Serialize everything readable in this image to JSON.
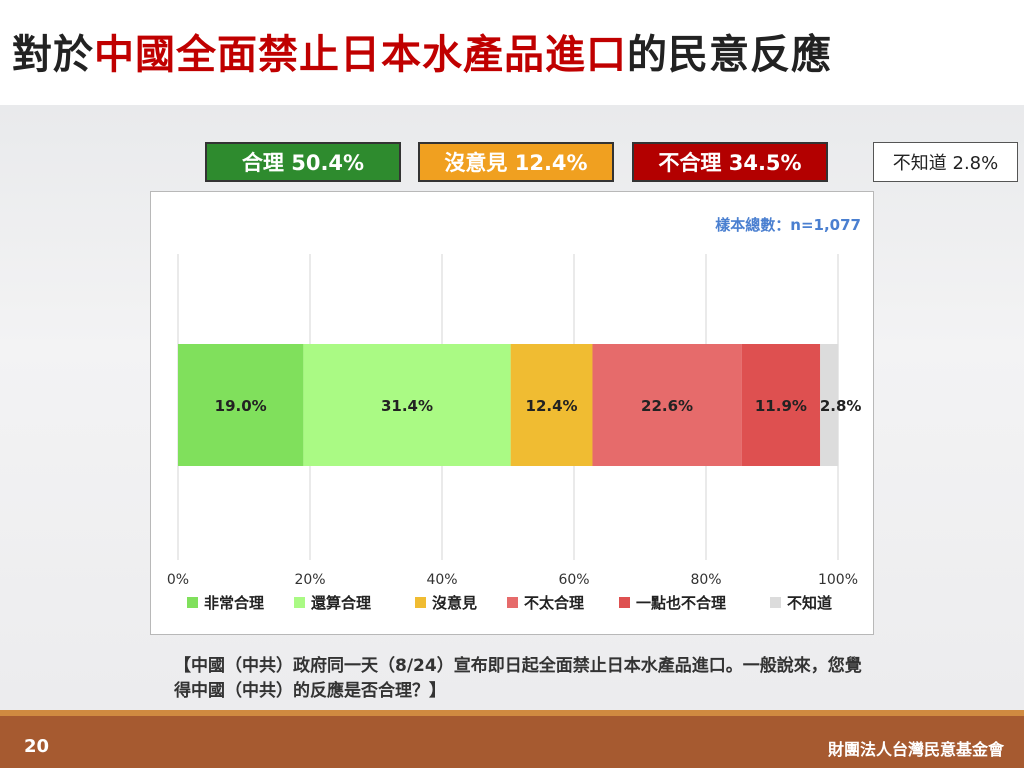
{
  "title": {
    "prefix": "對於",
    "highlight": "中國全面禁止日本水產品進口",
    "suffix": "的民意反應"
  },
  "summary": {
    "reasonable": "合理 50.4%",
    "no_opinion": "沒意見 12.4%",
    "unreasonable": "不合理 34.5%",
    "dont_know": "不知道 2.8%"
  },
  "sample_size": "樣本總數：n=1,077",
  "question": "【中國（中共）政府同一天（8/24）宣布即日起全面禁止日本水產品進口。一般說來，您覺得中國（中共）的反應是否合理？】",
  "page_number": "20",
  "organization": "財團法人台灣民意基金會",
  "colors": {
    "very_reasonable": "#80e05c",
    "somewhat_reasonable": "#aafa84",
    "no_opinion": "#f0bc32",
    "not_very_reasonable": "#e66b6b",
    "not_at_all_reasonable": "#de5050",
    "dont_know": "#dcdcdc"
  },
  "chart_data": {
    "type": "bar",
    "orientation": "horizontal-stacked",
    "categories": [
      ""
    ],
    "series": [
      {
        "name": "非常合理",
        "values": [
          19.0
        ],
        "label": "19.0%",
        "color": "#80e05c"
      },
      {
        "name": "還算合理",
        "values": [
          31.4
        ],
        "label": "31.4%",
        "color": "#aafa84"
      },
      {
        "name": "沒意見",
        "values": [
          12.4
        ],
        "label": "12.4%",
        "color": "#f0bc32"
      },
      {
        "name": "不太合理",
        "values": [
          22.6
        ],
        "label": "22.6%",
        "color": "#e66b6b"
      },
      {
        "name": "一點也不合理",
        "values": [
          11.9
        ],
        "label": "11.9%",
        "color": "#de5050"
      },
      {
        "name": "不知道",
        "values": [
          2.8
        ],
        "label": "2.8%",
        "color": "#dcdcdc"
      }
    ],
    "xlim": [
      0,
      100
    ],
    "x_ticks": [
      "0%",
      "20%",
      "40%",
      "60%",
      "80%",
      "100%"
    ],
    "grid": true,
    "legend_position": "bottom"
  }
}
